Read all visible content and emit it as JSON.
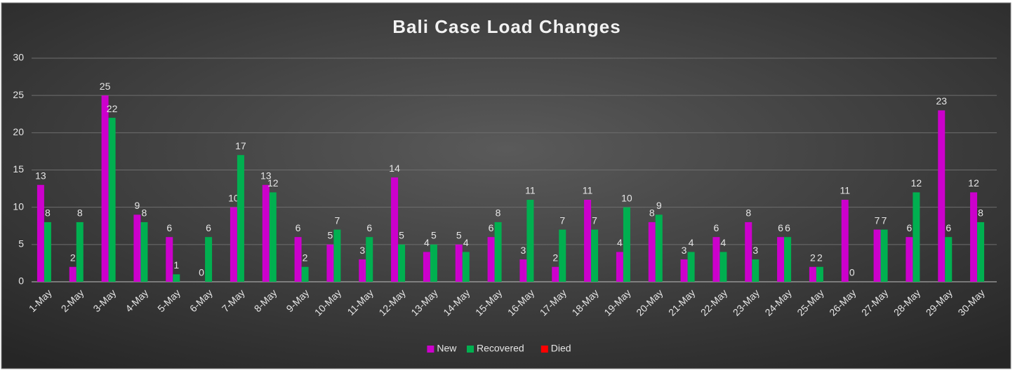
{
  "chart_data": {
    "type": "bar",
    "title": "Bali Case Load Changes",
    "categories": [
      "1-May",
      "2-May",
      "3-May",
      "4-May",
      "5-May",
      "6-May",
      "7-May",
      "8-May",
      "9-May",
      "10-May",
      "11-May",
      "12-May",
      "13-May",
      "14-May",
      "15-May",
      "16-May",
      "17-May",
      "18-May",
      "19-May",
      "20-May",
      "21-May",
      "22-May",
      "23-May",
      "24-May",
      "25-May",
      "26-May",
      "27-May",
      "28-May",
      "29-May",
      "30-May"
    ],
    "series": [
      {
        "name": "New",
        "color": "#cc00cc",
        "values": [
          13,
          2,
          25,
          9,
          6,
          0,
          10,
          13,
          6,
          5,
          3,
          14,
          4,
          5,
          6,
          3,
          2,
          11,
          4,
          8,
          3,
          6,
          8,
          6,
          2,
          11,
          7,
          6,
          23,
          12
        ]
      },
      {
        "name": "Recovered",
        "color": "#00b050",
        "values": [
          8,
          8,
          22,
          8,
          1,
          6,
          17,
          12,
          2,
          7,
          6,
          5,
          5,
          4,
          8,
          11,
          7,
          7,
          10,
          9,
          4,
          4,
          3,
          6,
          2,
          0,
          7,
          12,
          6,
          8
        ]
      },
      {
        "name": "Died",
        "color": "#ff0000",
        "values": [
          null,
          null,
          null,
          null,
          null,
          null,
          null,
          null,
          null,
          null,
          null,
          null,
          null,
          null,
          null,
          null,
          null,
          null,
          null,
          null,
          null,
          null,
          null,
          null,
          null,
          null,
          null,
          null,
          null,
          null
        ]
      }
    ],
    "ylim": [
      0,
      30
    ],
    "yticks": [
      0,
      5,
      10,
      15,
      20,
      25,
      30
    ],
    "grid": true,
    "legend": "bottom"
  }
}
